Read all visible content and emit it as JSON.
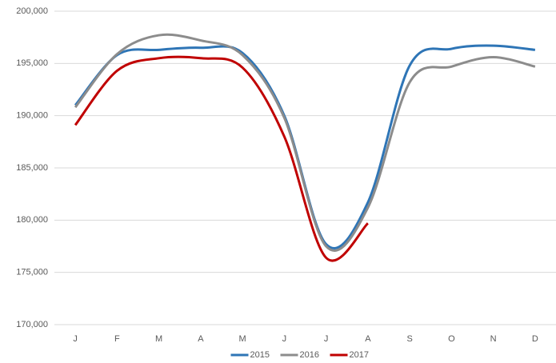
{
  "chart_data": {
    "type": "line",
    "categories": [
      "J",
      "F",
      "M",
      "A",
      "M",
      "J",
      "J",
      "A",
      "S",
      "O",
      "N",
      "D"
    ],
    "series": [
      {
        "name": "2015",
        "color": "#2e75b6",
        "values": [
          191000,
          195800,
          196300,
          196500,
          196000,
          190000,
          177700,
          181700,
          194800,
          196400,
          196700,
          196300
        ]
      },
      {
        "name": "2016",
        "color": "#8c8c8c",
        "values": [
          190800,
          195900,
          197700,
          197200,
          195800,
          189800,
          177500,
          181200,
          193200,
          194700,
          195600,
          194700
        ]
      },
      {
        "name": "2017",
        "color": "#c00000",
        "values": [
          189100,
          194300,
          195500,
          195500,
          194600,
          188000,
          176400,
          179700,
          null,
          null,
          null,
          null
        ]
      }
    ],
    "ylim": [
      170000,
      200000
    ],
    "yticks": [
      {
        "value": 170000,
        "label": "170,000"
      },
      {
        "value": 175000,
        "label": "175,000"
      },
      {
        "value": 180000,
        "label": "180,000"
      },
      {
        "value": 185000,
        "label": "185,000"
      },
      {
        "value": 190000,
        "label": "190,000"
      },
      {
        "value": 195000,
        "label": "195,000"
      },
      {
        "value": 200000,
        "label": "200,000"
      }
    ],
    "grid": true,
    "legend": "bottom"
  }
}
